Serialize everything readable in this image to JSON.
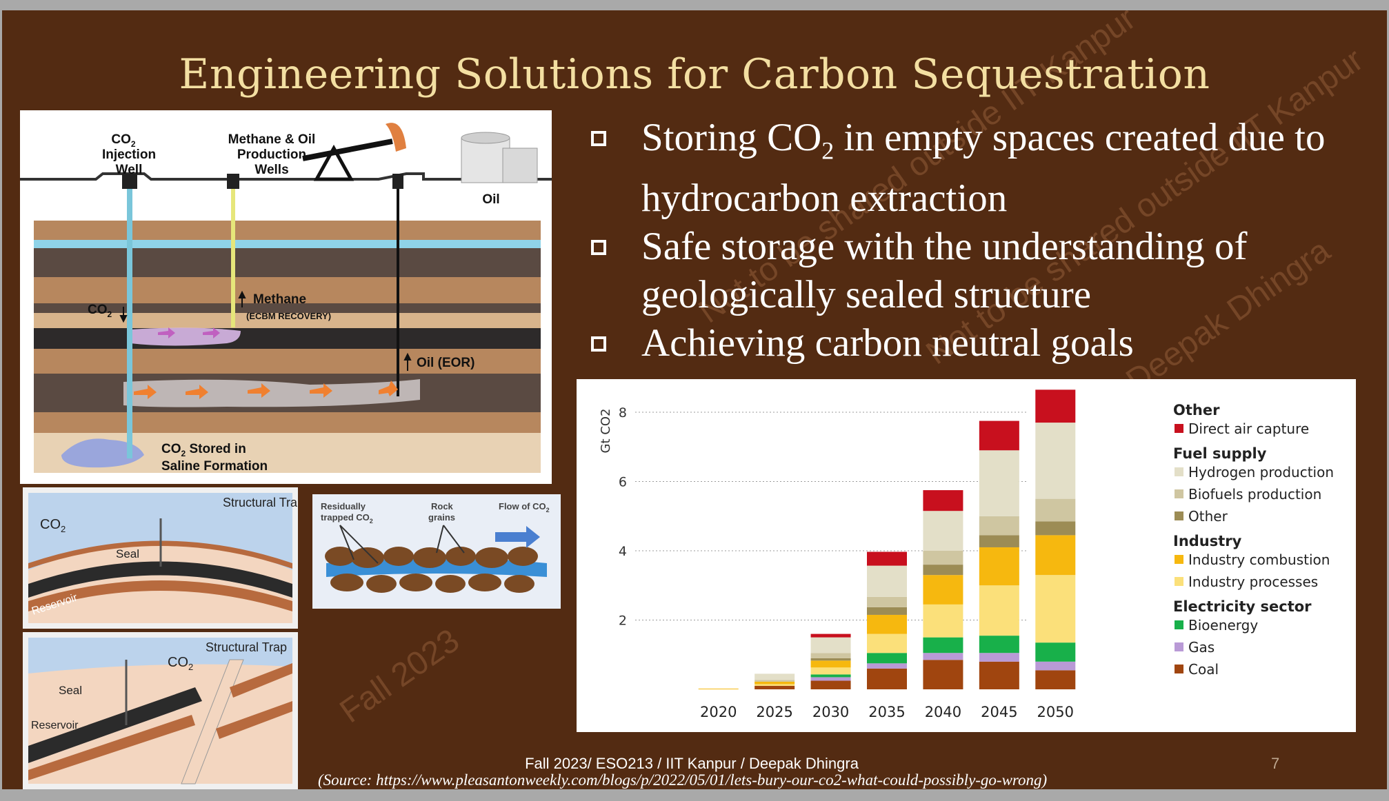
{
  "slide": {
    "title": "Engineering Solutions for Carbon Sequestration",
    "bullets": [
      {
        "pre": "Storing CO",
        "sub": "2",
        "post": " in empty spaces created due to hydrocarbon extraction"
      },
      {
        "pre": "Safe storage with the understanding of geologically sealed structure",
        "sub": "",
        "post": ""
      },
      {
        "pre": "Achieving carbon neutral goals",
        "sub": "",
        "post": ""
      }
    ],
    "footer": "Fall 2023/ ESO213 / IIT Kanpur / Deepak Dhingra",
    "source": "(Source: https://www.pleasantonweekly.com/blogs/p/2022/05/01/lets-bury-our-co2-what-could-possibly-go-wrong)",
    "page_number": "7",
    "watermarks": [
      "Not to be shared outside IIT Kanpur",
      "Deepak Dhingra",
      "Not to be shared outside IIT Kanpur",
      "Fall 2023"
    ]
  },
  "main_diagram": {
    "labels": {
      "co2_injection_line1": "CO",
      "co2_injection_line2": "Injection",
      "co2_injection_line3": "Well",
      "wells_line1": "Methane & Oil",
      "wells_line2": "Production",
      "wells_line3": "Wells",
      "oil_tank": "Oil",
      "co2_down": "CO",
      "methane": "Methane",
      "ecbm": "(ECBM RECOVERY)",
      "oil_eor": "Oil (EOR)",
      "stored_line1": "CO",
      "stored_line1b": " Stored in",
      "stored_line2": "Saline Formation",
      "sub2": "2"
    }
  },
  "trap1": {
    "title": "Structural Trap",
    "co2": "CO",
    "sub": "2",
    "seal": "Seal",
    "reservoir": "Reservoir"
  },
  "trap2": {
    "title": "Structural Trap",
    "co2": "CO",
    "sub": "2",
    "seal": "Seal",
    "reservoir": "Reservoir"
  },
  "pore": {
    "residual_line1": "Residually",
    "residual_line2": "trapped CO",
    "rock_line1": "Rock",
    "rock_line2": "grains",
    "flow": "Flow of CO",
    "sub": "2"
  },
  "chart_data": {
    "type": "bar",
    "stacked": true,
    "ylabel": "Gt CO2",
    "ylim": [
      0,
      8
    ],
    "yticks": [
      2,
      4,
      6,
      8
    ],
    "categories": [
      "2020",
      "2025",
      "2030",
      "2035",
      "2040",
      "2045",
      "2050"
    ],
    "legend_placement": "right",
    "legend_groups": [
      {
        "title": "Other",
        "items": [
          "Direct air capture"
        ]
      },
      {
        "title": "Fuel supply",
        "items": [
          "Hydrogen production",
          "Biofuels production",
          "Other"
        ]
      },
      {
        "title": "Industry",
        "items": [
          "Industry combustion",
          "Industry processes"
        ]
      },
      {
        "title": "Electricity sector",
        "items": [
          "Bioenergy",
          "Gas",
          "Coal"
        ]
      }
    ],
    "series": [
      {
        "name": "Coal",
        "color": "#a0450f",
        "values": [
          0.0,
          0.1,
          0.25,
          0.6,
          0.85,
          0.8,
          0.55
        ]
      },
      {
        "name": "Gas",
        "color": "#b99ad6",
        "values": [
          0.0,
          0.0,
          0.1,
          0.15,
          0.2,
          0.25,
          0.25
        ]
      },
      {
        "name": "Bioenergy",
        "color": "#18b04a",
        "values": [
          0.0,
          0.0,
          0.08,
          0.3,
          0.45,
          0.5,
          0.55
        ]
      },
      {
        "name": "Industry processes",
        "color": "#fbe07a",
        "values": [
          0.0,
          0.05,
          0.2,
          0.55,
          0.95,
          1.45,
          1.95
        ]
      },
      {
        "name": "Industry combustion",
        "color": "#f6b80f",
        "values": [
          0.02,
          0.07,
          0.2,
          0.55,
          0.85,
          1.1,
          1.15
        ]
      },
      {
        "name": "Other",
        "color": "#9c8c55",
        "values": [
          0.0,
          0.0,
          0.07,
          0.22,
          0.3,
          0.35,
          0.4
        ]
      },
      {
        "name": "Biofuels production",
        "color": "#cfc6a1",
        "values": [
          0.0,
          0.05,
          0.15,
          0.3,
          0.4,
          0.55,
          0.65
        ]
      },
      {
        "name": "Hydrogen production",
        "color": "#e3dfc8",
        "values": [
          0.0,
          0.18,
          0.45,
          0.9,
          1.15,
          1.9,
          2.2
        ]
      },
      {
        "name": "Direct air capture",
        "color": "#c8101e",
        "values": [
          0.0,
          0.0,
          0.1,
          0.4,
          0.6,
          0.85,
          0.95
        ]
      }
    ]
  }
}
